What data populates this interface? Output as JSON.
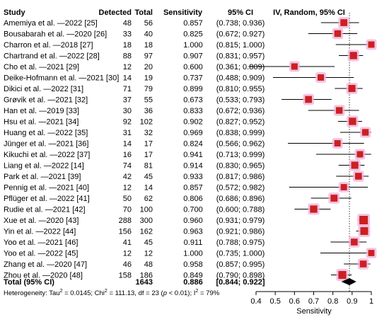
{
  "chart_data": {
    "type": "forest",
    "headers": {
      "study": "Study",
      "detected": "Detected",
      "total": "Total",
      "sensitivity": "Sensitivity",
      "ci": "95% CI",
      "model": "IV, Random, 95% CI"
    },
    "studies": [
      {
        "label": "Amemiya et al. —2022 [25]",
        "detected": "48",
        "total": "56",
        "sens": 0.857,
        "lo": 0.738,
        "hi": 0.936,
        "sens_text": "0.857",
        "ci_text": "(0.738; 0.936)"
      },
      {
        "label": "Bousabarah et al. —2020 [26]",
        "detected": "33",
        "total": "40",
        "sens": 0.825,
        "lo": 0.672,
        "hi": 0.927,
        "sens_text": "0.825",
        "ci_text": "(0.672; 0.927)"
      },
      {
        "label": "Charron et al. —2018 [27]",
        "detected": "18",
        "total": "18",
        "sens": 1.0,
        "lo": 0.815,
        "hi": 1.0,
        "sens_text": "1.000",
        "ci_text": "(0.815; 1.000)"
      },
      {
        "label": "Chartrand et al. —2022 [28]",
        "detected": "88",
        "total": "97",
        "sens": 0.907,
        "lo": 0.831,
        "hi": 0.957,
        "sens_text": "0.907",
        "ci_text": "(0.831; 0.957)"
      },
      {
        "label": "Cho et al. —2021 [29]",
        "detected": "12",
        "total": "20",
        "sens": 0.6,
        "lo": 0.361,
        "hi": 0.809,
        "sens_text": "0.600",
        "ci_text": "(0.361; 0.809)"
      },
      {
        "label": "Deike-Hofmann et al. —2021 [30]",
        "detected": "14",
        "total": "19",
        "sens": 0.737,
        "lo": 0.488,
        "hi": 0.909,
        "sens_text": "0.737",
        "ci_text": "(0.488; 0.909)"
      },
      {
        "label": "Dikici et al. —2022 [31]",
        "detected": "71",
        "total": "79",
        "sens": 0.899,
        "lo": 0.81,
        "hi": 0.955,
        "sens_text": "0.899",
        "ci_text": "(0.810; 0.955)"
      },
      {
        "label": "Grøvik et al. —2021 [32]",
        "detected": "37",
        "total": "55",
        "sens": 0.673,
        "lo": 0.533,
        "hi": 0.793,
        "sens_text": "0.673",
        "ci_text": "(0.533; 0.793)"
      },
      {
        "label": "Han et al. —2019 [33]",
        "detected": "30",
        "total": "36",
        "sens": 0.833,
        "lo": 0.672,
        "hi": 0.936,
        "sens_text": "0.833",
        "ci_text": "(0.672; 0.936)"
      },
      {
        "label": "Hsu et al. —2021 [34]",
        "detected": "92",
        "total": "102",
        "sens": 0.902,
        "lo": 0.827,
        "hi": 0.952,
        "sens_text": "0.902",
        "ci_text": "(0.827; 0.952)"
      },
      {
        "label": "Huang et al. —2022 [35]",
        "detected": "31",
        "total": "32",
        "sens": 0.969,
        "lo": 0.838,
        "hi": 0.999,
        "sens_text": "0.969",
        "ci_text": "(0.838; 0.999)"
      },
      {
        "label": "Jünger et al. —2021 [36]",
        "detected": "14",
        "total": "17",
        "sens": 0.824,
        "lo": 0.566,
        "hi": 0.962,
        "sens_text": "0.824",
        "ci_text": "(0.566; 0.962)"
      },
      {
        "label": "Kikuchi et al. —2022 [37]",
        "detected": "16",
        "total": "17",
        "sens": 0.941,
        "lo": 0.713,
        "hi": 0.999,
        "sens_text": "0.941",
        "ci_text": "(0.713; 0.999)"
      },
      {
        "label": "Liang et al. —2022 [14]",
        "detected": "74",
        "total": "81",
        "sens": 0.914,
        "lo": 0.83,
        "hi": 0.965,
        "sens_text": "0.914",
        "ci_text": "(0.830; 0.965)"
      },
      {
        "label": "Park et al. —2021 [39]",
        "detected": "42",
        "total": "45",
        "sens": 0.933,
        "lo": 0.817,
        "hi": 0.986,
        "sens_text": "0.933",
        "ci_text": "(0.817; 0.986)"
      },
      {
        "label": "Pennig et al. —2021 [40]",
        "detected": "12",
        "total": "14",
        "sens": 0.857,
        "lo": 0.572,
        "hi": 0.982,
        "sens_text": "0.857",
        "ci_text": "(0.572; 0.982)"
      },
      {
        "label": "Pflüger et al. —2022 [41]",
        "detected": "50",
        "total": "62",
        "sens": 0.806,
        "lo": 0.686,
        "hi": 0.896,
        "sens_text": "0.806",
        "ci_text": "(0.686; 0.896)"
      },
      {
        "label": "Rudie et al. —2021 [42]",
        "detected": "70",
        "total": "100",
        "sens": 0.7,
        "lo": 0.6,
        "hi": 0.788,
        "sens_text": "0.700",
        "ci_text": "(0.600; 0.788)"
      },
      {
        "label": "Xue et al. —2020 [43]",
        "detected": "288",
        "total": "300",
        "sens": 0.96,
        "lo": 0.931,
        "hi": 0.979,
        "sens_text": "0.960",
        "ci_text": "(0.931; 0.979)"
      },
      {
        "label": "Yin et al. —2022 [44]",
        "detected": "156",
        "total": "162",
        "sens": 0.963,
        "lo": 0.921,
        "hi": 0.986,
        "sens_text": "0.963",
        "ci_text": "(0.921; 0.986)"
      },
      {
        "label": "Yoo et al. —2021 [46]",
        "detected": "41",
        "total": "45",
        "sens": 0.911,
        "lo": 0.788,
        "hi": 0.975,
        "sens_text": "0.911",
        "ci_text": "(0.788; 0.975)"
      },
      {
        "label": "Yoo et al. —2022 [45]",
        "detected": "12",
        "total": "12",
        "sens": 1.0,
        "lo": 0.735,
        "hi": 1.0,
        "sens_text": "1.000",
        "ci_text": "(0.735; 1.000)"
      },
      {
        "label": "Zhang et al. —2020 [47]",
        "detected": "46",
        "total": "48",
        "sens": 0.958,
        "lo": 0.857,
        "hi": 0.995,
        "sens_text": "0.958",
        "ci_text": "(0.857; 0.995)"
      },
      {
        "label": "Zhou et al. —2020 [48]",
        "detected": "158",
        "total": "186",
        "sens": 0.849,
        "lo": 0.79,
        "hi": 0.898,
        "sens_text": "0.849",
        "ci_text": "(0.790; 0.898)"
      }
    ],
    "total": {
      "label": "Total (95% CI)",
      "total": "1643",
      "sens": 0.886,
      "lo": 0.844,
      "hi": 0.922,
      "sens_text": "0.886",
      "ci_text": "[0.844; 0.922]"
    },
    "heterogeneity": {
      "prefix": "Heterogeneity: Tau",
      "tau2": "= 0.0145; Chi",
      "chi2": "= 111.13, df = 23 (",
      "p": "p",
      "p_rest": " < 0.01); I",
      "i2": "= 79%"
    },
    "xaxis": {
      "label": "Sensitivity",
      "min": 0.4,
      "max": 1.0,
      "ticks": [
        "0.4",
        "0.5",
        "0.6",
        "0.7",
        "0.8",
        "0.9",
        "1"
      ],
      "reference": 0.886
    },
    "colors": {
      "square": "#cc2020",
      "square_halo": "#f0b8e0",
      "diamond": "#000000",
      "line": "#000000"
    }
  }
}
